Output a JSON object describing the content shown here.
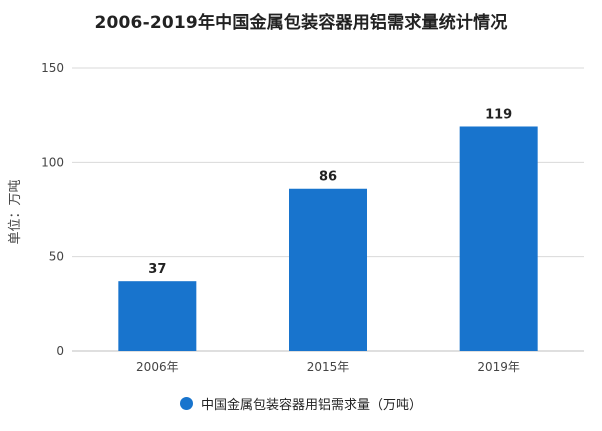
{
  "chart_data": {
    "type": "bar",
    "title": "2006-2019年中国金属包装容器用铝需求量统计情况",
    "ylabel": "单位：万吨",
    "xlabel": "",
    "categories": [
      "2006年",
      "2015年",
      "2019年"
    ],
    "series": [
      {
        "name": "中国金属包装容器用铝需求量（万吨）",
        "values": [
          37,
          86,
          119
        ]
      }
    ],
    "data_labels": [
      "37",
      "86",
      "119"
    ],
    "ylim": [
      0,
      150
    ],
    "yticks": [
      "0",
      "50",
      "100",
      "150"
    ],
    "grid": true,
    "legend_position": "bottom",
    "colors": {
      "bar": "#1874CD",
      "grid": "#D9D9D9",
      "axis_text": "#444444"
    }
  }
}
